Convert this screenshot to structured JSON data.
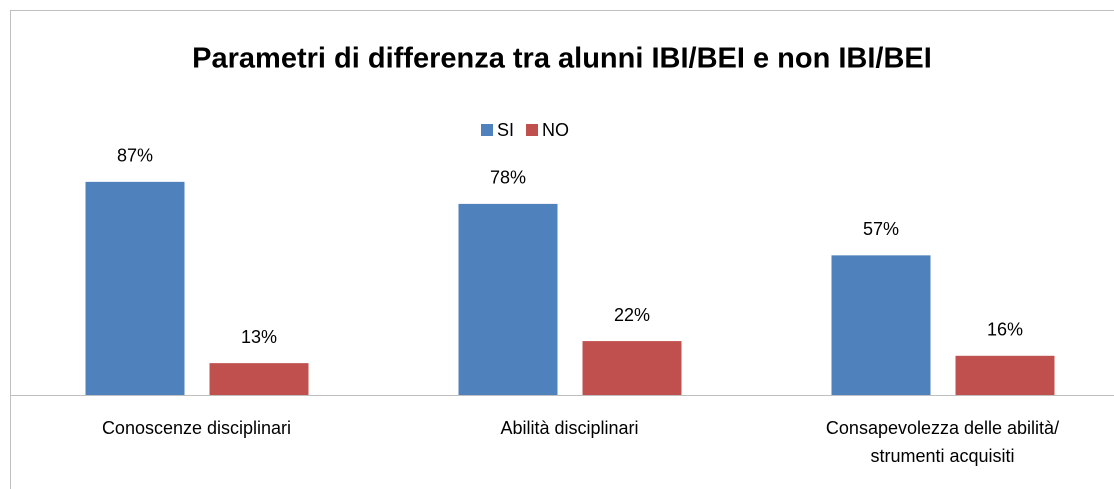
{
  "chart_data": {
    "type": "bar",
    "title": "Parametri di differenza tra alunni IBI/BEI e non IBI/BEI",
    "categories": [
      "Conoscenze disciplinari",
      "Abilità disciplinari",
      "Consapevolezza delle abilità/ strumenti acquisiti"
    ],
    "series": [
      {
        "name": "SI",
        "color": "#4f81bd",
        "values": [
          87,
          78,
          57
        ],
        "value_labels": [
          "87%",
          "78%",
          "57%"
        ]
      },
      {
        "name": "NO",
        "color": "#c0504d",
        "values": [
          13,
          22,
          16
        ],
        "value_labels": [
          "13%",
          "22%",
          "16%"
        ]
      }
    ],
    "ylim": [
      0,
      100
    ],
    "legend": "top"
  }
}
